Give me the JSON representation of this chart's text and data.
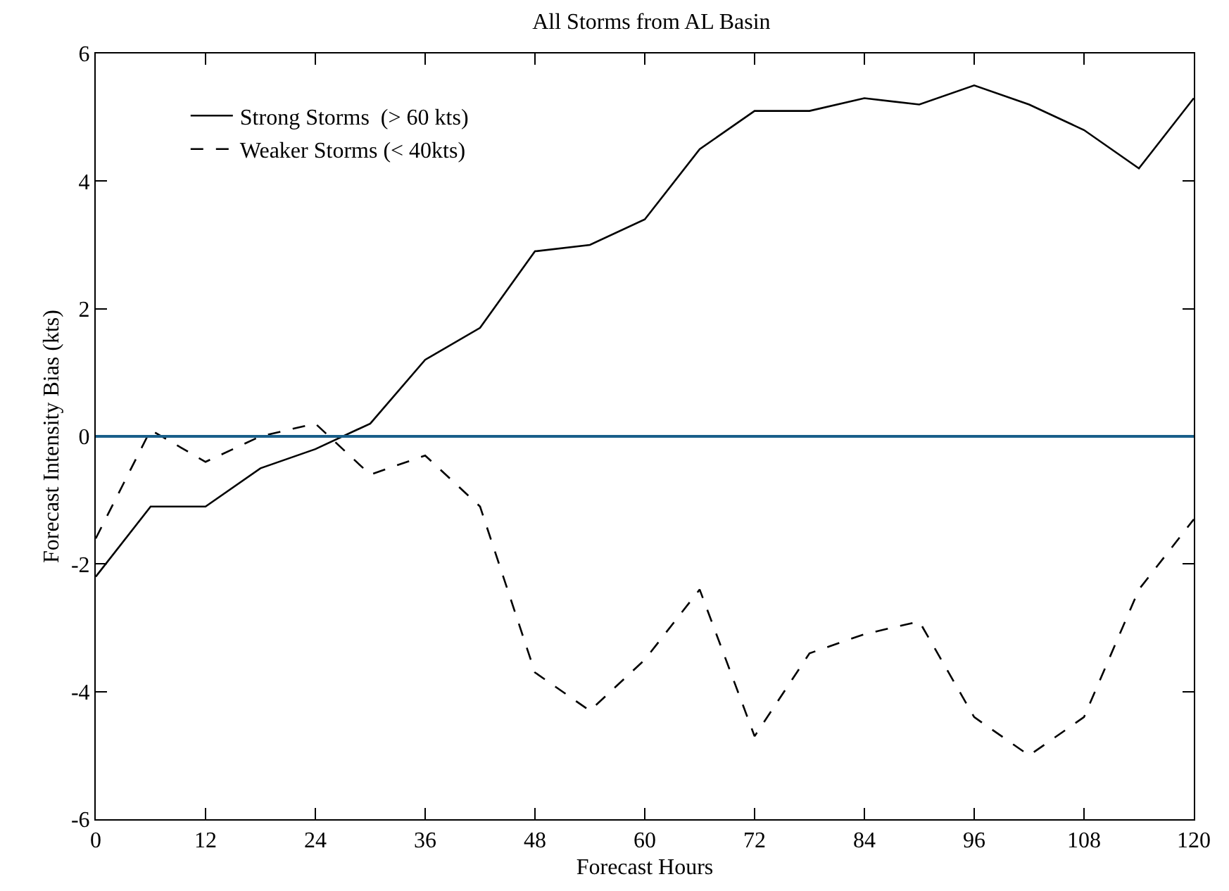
{
  "chart_data": {
    "type": "line",
    "title": "All Storms from AL Basin",
    "xlabel": "Forecast Hours",
    "ylabel": "Forecast Intensity Bias (kts)",
    "x": [
      0,
      6,
      12,
      18,
      24,
      30,
      36,
      42,
      48,
      54,
      60,
      66,
      72,
      78,
      84,
      90,
      96,
      102,
      108,
      114,
      120
    ],
    "series": [
      {
        "name": "Strong Storms  (> 60 kts)",
        "color": "#000000",
        "line_style": "solid",
        "values": [
          -2.2,
          -1.1,
          -1.1,
          -0.5,
          -0.2,
          0.2,
          1.2,
          1.7,
          2.9,
          3.0,
          3.4,
          4.5,
          5.1,
          5.1,
          5.3,
          5.2,
          5.5,
          5.2,
          4.8,
          4.2,
          5.3
        ]
      },
      {
        "name": "Weaker Storms (< 40kts)",
        "color": "#000000",
        "line_style": "dashed",
        "values": [
          -1.6,
          0.1,
          -0.4,
          0.0,
          0.2,
          -0.6,
          -0.3,
          -1.1,
          -3.7,
          -4.3,
          -3.5,
          -2.4,
          -4.7,
          -3.4,
          -3.1,
          -2.9,
          -4.4,
          -5.0,
          -4.4,
          -2.4,
          -1.3
        ]
      }
    ],
    "xlim": [
      0,
      120
    ],
    "xticks": [
      0,
      12,
      24,
      36,
      48,
      60,
      72,
      84,
      96,
      108,
      120
    ],
    "ylim": [
      -6,
      6
    ],
    "yticks": [
      -6,
      -4,
      -2,
      0,
      2,
      4,
      6
    ],
    "ref_lines": [
      {
        "axis": "y",
        "value": 0,
        "color": "#1a5f8a"
      }
    ],
    "grid": false,
    "legend": "top left",
    "marker": "none"
  }
}
